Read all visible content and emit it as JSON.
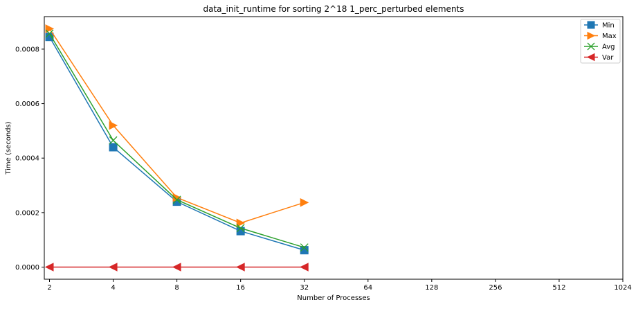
{
  "chart_data": {
    "type": "line",
    "title": "data_init_runtime for sorting 2^18 1_perc_perturbed elements",
    "xlabel": "Number of Processes",
    "ylabel": "Time (seconds)",
    "x_scale": "log2",
    "x_ticks": [
      "2",
      "4",
      "8",
      "16",
      "32",
      "64",
      "128",
      "256",
      "512",
      "1024"
    ],
    "x_tick_values": [
      2,
      4,
      8,
      16,
      32,
      64,
      128,
      256,
      512,
      1024
    ],
    "y_ticks": [
      "0.0000",
      "0.0002",
      "0.0004",
      "0.0006",
      "0.0008"
    ],
    "y_tick_values": [
      0,
      0.0002,
      0.0004,
      0.0006,
      0.0008
    ],
    "xlim": [
      1.89,
      1024
    ],
    "ylim": [
      -4.45e-05,
      0.0009193
    ],
    "grid": false,
    "legend_position": "top-right",
    "x": [
      2,
      4,
      8,
      16,
      32
    ],
    "series": [
      {
        "name": "Min",
        "color": "#1f77b4",
        "marker": "square",
        "values": [
          0.000845,
          0.00044,
          0.00024,
          0.000132,
          6.2e-05
        ]
      },
      {
        "name": "Max",
        "color": "#ff7f0e",
        "marker": "triangle-right",
        "values": [
          0.000875,
          0.00052,
          0.000255,
          0.000162,
          0.000237
        ]
      },
      {
        "name": "Avg",
        "color": "#2ca02c",
        "marker": "x",
        "values": [
          0.000857,
          0.000465,
          0.000247,
          0.000143,
          7.2e-05
        ]
      },
      {
        "name": "Var",
        "color": "#d62728",
        "marker": "triangle-left",
        "values": [
          0.0,
          0.0,
          0.0,
          0.0,
          0.0
        ]
      }
    ]
  }
}
